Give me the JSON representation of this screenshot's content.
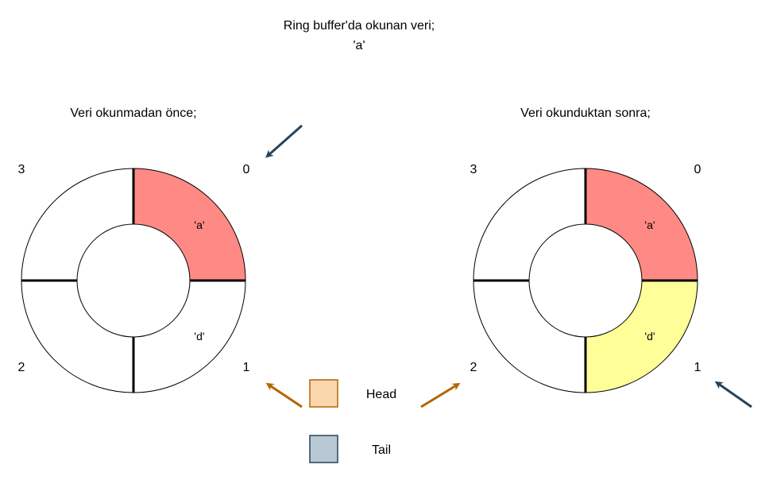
{
  "title": {
    "line1": "Ring buffer'da okunan veri;",
    "line2": "'a'"
  },
  "before": {
    "caption": "Veri okunmadan önce;",
    "indices": [
      "0",
      "1",
      "2",
      "3"
    ],
    "slots": [
      {
        "index": "0",
        "value": "'a'",
        "fill": "#ff8a85"
      },
      {
        "index": "1",
        "value": "'d'",
        "fill": "#ffffff"
      },
      {
        "index": "2",
        "value": "",
        "fill": "#ffffff"
      },
      {
        "index": "3",
        "value": "",
        "fill": "#ffffff"
      }
    ]
  },
  "after": {
    "caption": "Veri okunduktan sonra;",
    "indices": [
      "0",
      "1",
      "2",
      "3"
    ],
    "slots": [
      {
        "index": "0",
        "value": "'a'",
        "fill": "#ff8a85"
      },
      {
        "index": "1",
        "value": "'d'",
        "fill": "#ffff99"
      },
      {
        "index": "2",
        "value": "",
        "fill": "#ffffff"
      },
      {
        "index": "3",
        "value": "",
        "fill": "#ffffff"
      }
    ]
  },
  "legend": {
    "head": {
      "label": "Head",
      "color": "#fad7ac",
      "border": "#b46504"
    },
    "tail": {
      "label": "Tail",
      "color": "#bac8d3",
      "border": "#23445d"
    }
  },
  "arrows": {
    "head_color": "#b46504",
    "tail_color": "#23445d"
  }
}
